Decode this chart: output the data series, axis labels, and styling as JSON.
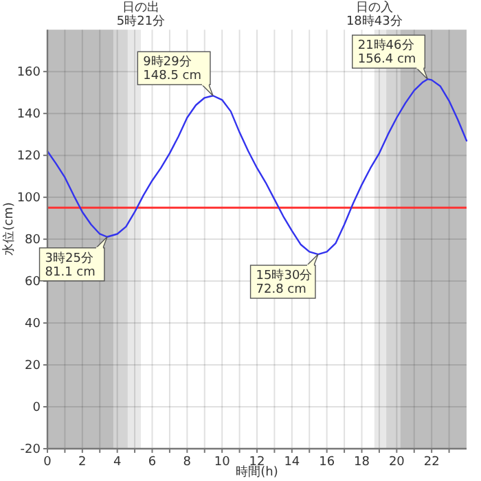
{
  "chart_data": {
    "type": "line",
    "xlabel": "時間(h)",
    "ylabel": "水位(cm)",
    "xlim": [
      0,
      24
    ],
    "ylim": [
      -20,
      180
    ],
    "xticks": [
      0,
      {
        "value": 1,
        "label": null
      },
      2,
      {
        "value": 3,
        "label": null
      },
      4,
      {
        "value": 5,
        "label": null
      },
      6,
      {
        "value": 7,
        "label": null
      },
      8,
      {
        "value": 9,
        "label": null
      },
      10,
      {
        "value": 11,
        "label": null
      },
      12,
      {
        "value": 13,
        "label": null
      },
      14,
      {
        "value": 15,
        "label": null
      },
      16,
      {
        "value": 17,
        "label": null
      },
      18,
      {
        "value": 19,
        "label": null
      },
      20,
      {
        "value": 21,
        "label": null
      },
      22,
      {
        "value": 23,
        "label": null
      }
    ],
    "yticks": [
      -20,
      0,
      20,
      40,
      60,
      80,
      100,
      120,
      140,
      160
    ],
    "grid": true,
    "marker": "none",
    "line_style": "solid",
    "series": [
      {
        "color": "#3333ee",
        "x": [
          0,
          0.5,
          1,
          1.5,
          2,
          2.5,
          3,
          3.42,
          4,
          4.5,
          5,
          5.5,
          6,
          6.5,
          7,
          7.5,
          8,
          8.5,
          9,
          9.48,
          10,
          10.5,
          11,
          11.5,
          12,
          12.5,
          13,
          13.5,
          14,
          14.5,
          15,
          15.5,
          16,
          16.5,
          17,
          17.5,
          18,
          18.5,
          19,
          19.5,
          20,
          20.5,
          21,
          21.5,
          21.77,
          22,
          22.5,
          23,
          23.5,
          24
        ],
        "values": [
          122,
          116,
          109.5,
          101,
          93,
          87,
          82.5,
          81.1,
          82.5,
          86,
          93,
          101,
          108,
          114,
          121,
          129,
          138,
          144,
          147.5,
          148.5,
          146.5,
          141,
          131,
          122,
          114,
          107,
          99,
          91,
          84,
          77.5,
          74,
          72.8,
          74,
          78,
          87,
          97,
          106,
          114,
          121,
          130,
          138,
          145,
          151,
          155,
          156.4,
          156,
          153,
          146,
          137,
          127
        ]
      }
    ],
    "ref_lines": [
      {
        "axis": "y",
        "value": 95,
        "color": "#ff3333",
        "line_style": "solid"
      }
    ],
    "bands": [
      {
        "axis": "x",
        "from": 0,
        "to": 3.8,
        "color": "#bdbdbd"
      },
      {
        "axis": "x",
        "from": 3.8,
        "to": 4.6,
        "color": "#d4d4d4"
      },
      {
        "axis": "x",
        "from": 4.6,
        "to": 5.35,
        "color": "#e8e8e8",
        "label": "日の出\n5時21分"
      },
      {
        "axis": "x",
        "from": 18.72,
        "to": 19.4,
        "color": "#e8e8e8",
        "label": "日の入\n18時43分"
      },
      {
        "axis": "x",
        "from": 19.4,
        "to": 20.2,
        "color": "#d4d4d4"
      },
      {
        "axis": "x",
        "from": 20.2,
        "to": 24,
        "color": "#bdbdbd"
      }
    ],
    "annotations": [
      {
        "text": "3時25分\n81.1 cm",
        "x": 3.42,
        "y": 81.1
      },
      {
        "text": "9時29分\n148.5 cm",
        "x": 9.48,
        "y": 148.5
      },
      {
        "text": "15時30分\n72.8 cm",
        "x": 15.5,
        "y": 72.8
      },
      {
        "text": "21時46分\n156.4 cm",
        "x": 21.77,
        "y": 156.4
      }
    ]
  }
}
